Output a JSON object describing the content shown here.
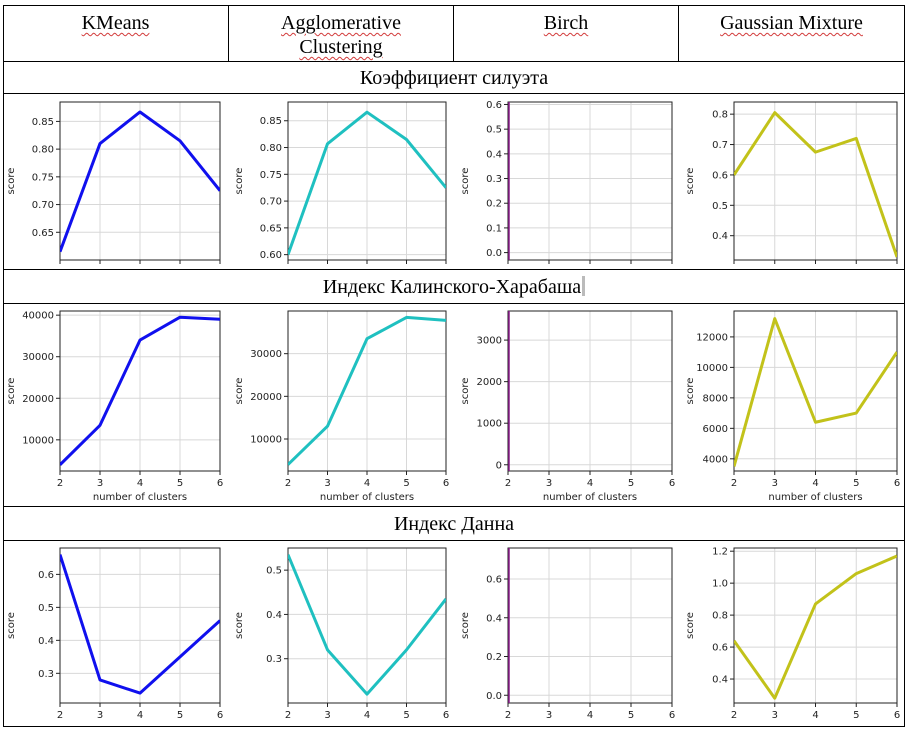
{
  "columns": [
    "KMeans",
    "Agglomerative Clustering",
    "Birch",
    "Gaussian Mixture"
  ],
  "sections": [
    {
      "title": "Коэффициент силуэта"
    },
    {
      "title": "Индекс Калинского-Харабаша"
    },
    {
      "title": "Индекс Данна"
    }
  ],
  "ylabel": "score",
  "xlabel": "number of clusters",
  "colors": {
    "KMeans": "#1010ee",
    "Agglomerative Clustering": "#1fc0c0",
    "Birch": "#8a1a8a",
    "Gaussian Mixture": "#c2c21a"
  },
  "chart_data": [
    {
      "type": "line",
      "section": "Коэффициент силуэта",
      "series": [
        {
          "name": "KMeans",
          "x": [
            2,
            3,
            4,
            5,
            6
          ],
          "values": [
            0.615,
            0.81,
            0.867,
            0.815,
            0.725
          ]
        }
      ],
      "xlim": [
        2,
        6
      ],
      "ylim": [
        0.6,
        0.885
      ],
      "yticks": [
        0.65,
        0.7,
        0.75,
        0.8,
        0.85
      ],
      "xticks": [
        2,
        3,
        4,
        5,
        6
      ],
      "xlabel": "",
      "ylabel": "score",
      "grid": true
    },
    {
      "type": "line",
      "section": "Коэффициент силуэта",
      "series": [
        {
          "name": "Agglomerative Clustering",
          "x": [
            2,
            3,
            4,
            5,
            6
          ],
          "values": [
            0.6,
            0.807,
            0.866,
            0.815,
            0.725
          ]
        }
      ],
      "xlim": [
        2,
        6
      ],
      "ylim": [
        0.59,
        0.885
      ],
      "yticks": [
        0.6,
        0.65,
        0.7,
        0.75,
        0.8,
        0.85
      ],
      "xticks": [
        2,
        3,
        4,
        5,
        6
      ],
      "xlabel": "",
      "ylabel": "score",
      "grid": true
    },
    {
      "type": "line",
      "section": "Коэффициент силуэта",
      "series": [
        {
          "name": "Birch",
          "x": [
            2
          ],
          "values": [
            0
          ]
        }
      ],
      "xlim": [
        2,
        6
      ],
      "ylim": [
        -0.03,
        0.61
      ],
      "yticks": [
        0.0,
        0.1,
        0.2,
        0.3,
        0.4,
        0.5,
        0.6
      ],
      "xticks": [
        2,
        3,
        4,
        5,
        6
      ],
      "xlabel": "",
      "ylabel": "score",
      "grid": true
    },
    {
      "type": "line",
      "section": "Коэффициент силуэта",
      "series": [
        {
          "name": "Gaussian Mixture",
          "x": [
            2,
            3,
            4,
            5,
            6
          ],
          "values": [
            0.6,
            0.805,
            0.675,
            0.72,
            0.33
          ]
        }
      ],
      "xlim": [
        2,
        6
      ],
      "ylim": [
        0.32,
        0.84
      ],
      "yticks": [
        0.4,
        0.5,
        0.6,
        0.7,
        0.8
      ],
      "xticks": [
        2,
        3,
        4,
        5,
        6
      ],
      "xlabel": "",
      "ylabel": "score",
      "grid": true
    },
    {
      "type": "line",
      "section": "Индекс Калинского-Харабаша",
      "series": [
        {
          "name": "KMeans",
          "x": [
            2,
            3,
            4,
            5,
            6
          ],
          "values": [
            4000,
            13500,
            34000,
            39500,
            39000
          ]
        }
      ],
      "xlim": [
        2,
        6
      ],
      "ylim": [
        2500,
        41000
      ],
      "yticks": [
        10000,
        20000,
        30000,
        40000
      ],
      "xticks": [
        2,
        3,
        4,
        5,
        6
      ],
      "xlabel": "number of clusters",
      "ylabel": "score",
      "grid": true
    },
    {
      "type": "line",
      "section": "Индекс Калинского-Харабаша",
      "series": [
        {
          "name": "Agglomerative Clustering",
          "x": [
            2,
            3,
            4,
            5,
            6
          ],
          "values": [
            4000,
            13000,
            33500,
            38500,
            37800
          ]
        }
      ],
      "xlim": [
        2,
        6
      ],
      "ylim": [
        2500,
        40000
      ],
      "yticks": [
        10000,
        20000,
        30000
      ],
      "xticks": [
        2,
        3,
        4,
        5,
        6
      ],
      "xlabel": "number of clusters",
      "ylabel": "score",
      "grid": true
    },
    {
      "type": "line",
      "section": "Индекс Калинского-Харабаша",
      "series": [
        {
          "name": "Birch",
          "x": [
            2
          ],
          "values": [
            0
          ]
        }
      ],
      "xlim": [
        2,
        6
      ],
      "ylim": [
        -150,
        3700
      ],
      "yticks": [
        0,
        1000,
        2000,
        3000
      ],
      "xticks": [
        2,
        3,
        4,
        5,
        6
      ],
      "xlabel": "number of clusters",
      "ylabel": "score",
      "grid": true
    },
    {
      "type": "line",
      "section": "Индекс Калинского-Харабаша",
      "series": [
        {
          "name": "Gaussian Mixture",
          "x": [
            2,
            3,
            4,
            5,
            6
          ],
          "values": [
            3500,
            13200,
            6400,
            7000,
            11000
          ]
        }
      ],
      "xlim": [
        2,
        6
      ],
      "ylim": [
        3200,
        13700
      ],
      "yticks": [
        4000,
        6000,
        8000,
        10000,
        12000
      ],
      "xticks": [
        2,
        3,
        4,
        5,
        6
      ],
      "xlabel": "number of clusters",
      "ylabel": "score",
      "grid": true
    },
    {
      "type": "line",
      "section": "Индекс Данна",
      "series": [
        {
          "name": "KMeans",
          "x": [
            2,
            3,
            4,
            5,
            6
          ],
          "values": [
            0.66,
            0.28,
            0.24,
            0.35,
            0.46
          ]
        }
      ],
      "xlim": [
        2,
        6
      ],
      "ylim": [
        0.21,
        0.68
      ],
      "yticks": [
        0.3,
        0.4,
        0.5,
        0.6
      ],
      "xticks": [
        2,
        3,
        4,
        5,
        6
      ],
      "xlabel": "",
      "ylabel": "score",
      "grid": true
    },
    {
      "type": "line",
      "section": "Индекс Данна",
      "series": [
        {
          "name": "Agglomerative Clustering",
          "x": [
            2,
            3,
            4,
            5,
            6
          ],
          "values": [
            0.535,
            0.32,
            0.22,
            0.32,
            0.435
          ]
        }
      ],
      "xlim": [
        2,
        6
      ],
      "ylim": [
        0.2,
        0.55
      ],
      "yticks": [
        0.3,
        0.4,
        0.5
      ],
      "xticks": [
        2,
        3,
        4,
        5,
        6
      ],
      "xlabel": "",
      "ylabel": "score",
      "grid": true
    },
    {
      "type": "line",
      "section": "Индекс Данна",
      "series": [
        {
          "name": "Birch",
          "x": [
            2
          ],
          "values": [
            0
          ]
        }
      ],
      "xlim": [
        2,
        6
      ],
      "ylim": [
        -0.04,
        0.76
      ],
      "yticks": [
        0.0,
        0.2,
        0.4,
        0.6
      ],
      "xticks": [
        2,
        3,
        4,
        5,
        6
      ],
      "xlabel": "",
      "ylabel": "score",
      "grid": true
    },
    {
      "type": "line",
      "section": "Индекс Данна",
      "series": [
        {
          "name": "Gaussian Mixture",
          "x": [
            2,
            3,
            4,
            5,
            6
          ],
          "values": [
            0.64,
            0.28,
            0.87,
            1.06,
            1.17
          ]
        }
      ],
      "xlim": [
        2,
        6
      ],
      "ylim": [
        0.25,
        1.22
      ],
      "yticks": [
        0.4,
        0.6,
        0.8,
        1.0,
        1.2
      ],
      "xticks": [
        2,
        3,
        4,
        5,
        6
      ],
      "xlabel": "",
      "ylabel": "score",
      "grid": true
    }
  ]
}
